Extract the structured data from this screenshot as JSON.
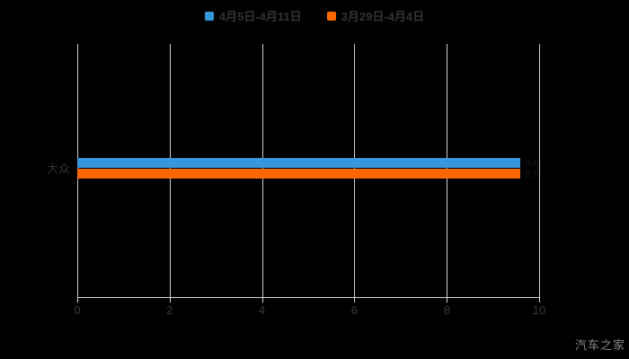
{
  "chart_data": {
    "type": "bar",
    "orientation": "horizontal",
    "title": "",
    "categories": [
      "大众"
    ],
    "series": [
      {
        "name": "4月5日-4月11日",
        "color": "#3498db",
        "marker": "rounded-square",
        "values": [
          9.6
        ]
      },
      {
        "name": "3月29日-4月4日",
        "color": "#ff6600",
        "marker": "rounded-square",
        "values": [
          9.6
        ]
      }
    ],
    "xlim": [
      0,
      10
    ],
    "x_ticks": [
      0,
      2,
      4,
      6,
      8,
      10
    ],
    "grid": true,
    "legend_position": "top-center",
    "value_labels": {
      "visible": true,
      "color": "#161616"
    }
  },
  "watermark": {
    "text": "汽车之家"
  },
  "colors": {
    "background": "#000000",
    "gridline": "#cccccc",
    "axis_line": "#d6d6d6",
    "tick_label": "#3a3a3a",
    "category_label": "#333333",
    "legend_label": "#333333"
  }
}
